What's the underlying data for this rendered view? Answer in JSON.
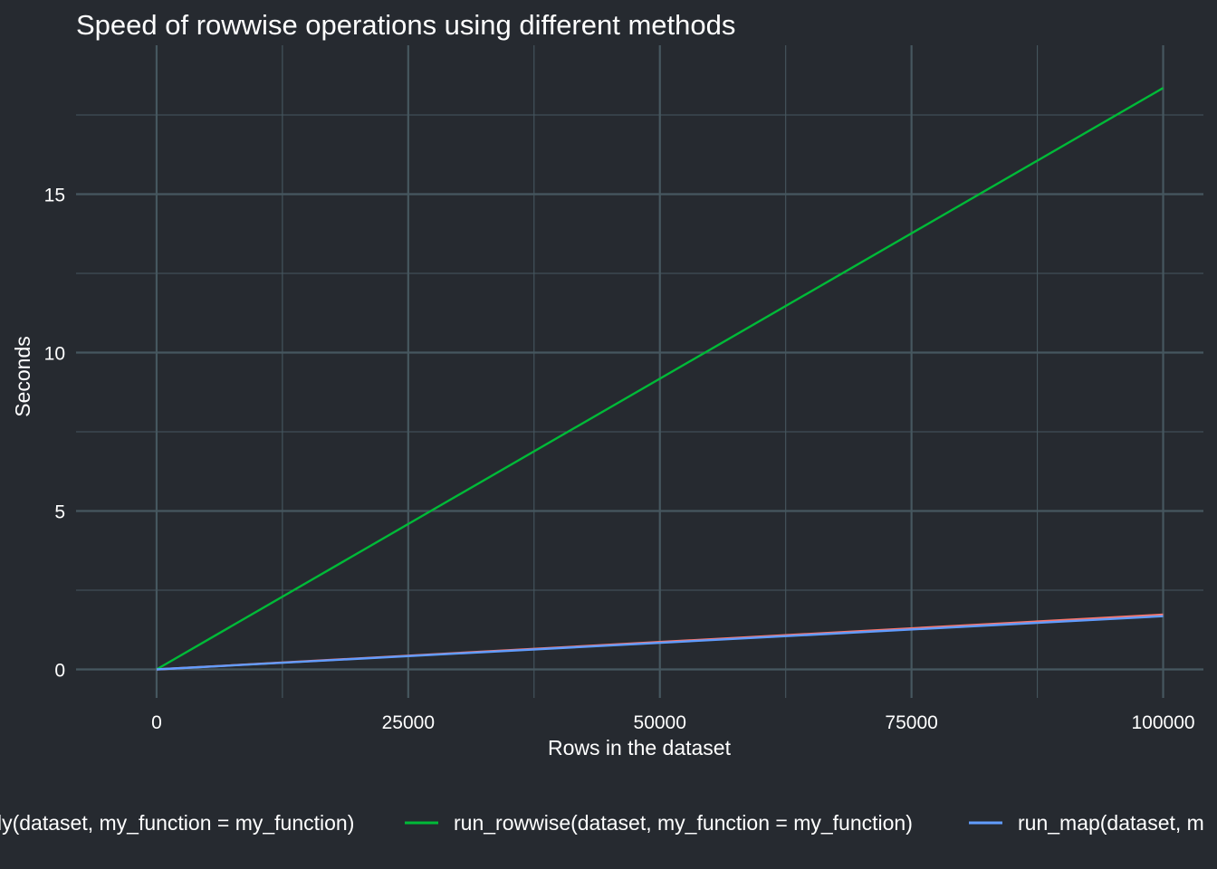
{
  "chart_data": {
    "type": "line",
    "title": "Speed of rowwise operations using different methods",
    "xlabel": "Rows in the dataset",
    "ylabel": "Seconds",
    "xlim": [
      -8000,
      104000
    ],
    "ylim": [
      -0.9,
      19.7
    ],
    "x_ticks": [
      0,
      25000,
      50000,
      75000,
      100000
    ],
    "x_tick_labels": [
      "0",
      "25000",
      "50000",
      "75000",
      "100000"
    ],
    "y_ticks": [
      0,
      5,
      10,
      15
    ],
    "y_tick_labels": [
      "0",
      "5",
      "10",
      "15"
    ],
    "x_minor_ticks": [
      12500,
      37500,
      62500,
      87500
    ],
    "y_minor_ticks": [
      2.5,
      7.5,
      12.5,
      17.5
    ],
    "grid": true,
    "legend_position": "bottom",
    "legend_visible_text": [
      "ly(dataset, my_function = my_function)",
      "run_rowwise(dataset, my_function = my_function)",
      "run_map(dataset, m"
    ],
    "series": [
      {
        "name": "run_apply(dataset, my_function = my_function)",
        "color": "#f8766d",
        "x": [
          0,
          100000
        ],
        "y": [
          0,
          1.73
        ]
      },
      {
        "name": "run_rowwise(dataset, my_function = my_function)",
        "color": "#00ba38",
        "x": [
          0,
          100000
        ],
        "y": [
          0,
          18.35
        ]
      },
      {
        "name": "run_map(dataset, my_function = my_function)",
        "color": "#619cff",
        "x": [
          0,
          100000
        ],
        "y": [
          0,
          1.68
        ]
      }
    ]
  },
  "colors": {
    "background": "#262a30",
    "grid": "#46575f",
    "text": "#ffffff"
  }
}
